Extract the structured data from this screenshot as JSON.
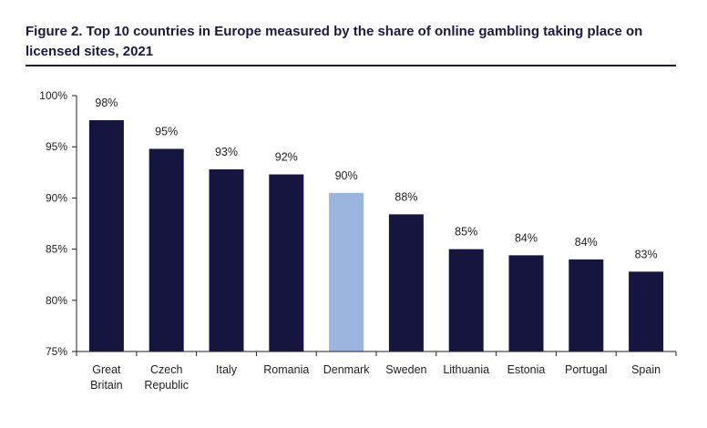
{
  "chart_data": {
    "type": "bar",
    "title": "Figure 2. Top 10 countries in Europe measured by the share of online gambling taking place on licensed sites, 2021",
    "categories": [
      "Great Britain",
      "Czech Republic",
      "Italy",
      "Romania",
      "Denmark",
      "Sweden",
      "Lithuania",
      "Estonia",
      "Portugal",
      "Spain"
    ],
    "category_lines": [
      [
        "Great",
        "Britain"
      ],
      [
        "Czech",
        "Republic"
      ],
      [
        "Italy"
      ],
      [
        "Romania"
      ],
      [
        "Denmark"
      ],
      [
        "Sweden"
      ],
      [
        "Lithuania"
      ],
      [
        "Estonia"
      ],
      [
        "Portugal"
      ],
      [
        "Spain"
      ]
    ],
    "values": [
      97.6,
      94.8,
      92.8,
      92.3,
      90.5,
      88.4,
      85.0,
      84.4,
      84.0,
      82.8
    ],
    "data_labels": [
      "98%",
      "95%",
      "93%",
      "92%",
      "90%",
      "88%",
      "85%",
      "84%",
      "84%",
      "83%"
    ],
    "ylim": [
      75,
      100
    ],
    "yticks": [
      75,
      80,
      85,
      90,
      95,
      100
    ],
    "ytick_labels": [
      "75%",
      "80%",
      "85%",
      "90%",
      "95%",
      "100%"
    ],
    "xlabel": "",
    "ylabel": "",
    "grid": false,
    "colors": {
      "default": "#15153f",
      "highlight": "#9ab6de",
      "axis": "#222222"
    },
    "highlight_index": 4
  }
}
